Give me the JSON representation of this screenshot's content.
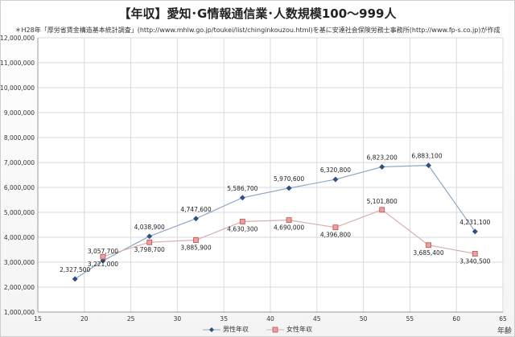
{
  "title": "【年収】愛知･G情報通信業･人数規模100～999人",
  "subtitle": "＊H28年「厚労省賃金構造基本統計調査」(http://www.mhlw.go.jp/toukei/list/chinginkouzou.html)を基に安達社会保険労務士事務所(http://www.fp-s.co.jp)が作成",
  "colors": {
    "male": "#4f6f9f",
    "female": "#c0504d",
    "grid": "#d9d9d9",
    "axis": "#999999"
  },
  "chart_data": {
    "type": "line",
    "title": "【年収】愛知･G情報通信業･人数規模100～999人",
    "xlabel": "年齢",
    "ylabel": "",
    "xlim": [
      15,
      65
    ],
    "ylim": [
      1000000,
      12000000
    ],
    "x_ticks": [
      15,
      20,
      25,
      30,
      35,
      40,
      45,
      50,
      55,
      60,
      65
    ],
    "y_ticks": [
      1000000,
      2000000,
      3000000,
      4000000,
      5000000,
      6000000,
      7000000,
      8000000,
      9000000,
      10000000,
      11000000,
      12000000
    ],
    "y_tick_labels": [
      "1,000,000",
      "2,000,000",
      "3,000,000",
      "4,000,000",
      "5,000,000",
      "6,000,000",
      "7,000,000",
      "8,000,000",
      "9,000,000",
      "10,000,000",
      "11,000,000",
      "12,000,000"
    ],
    "grid": true,
    "legend": "bottom",
    "series": [
      {
        "name": "男性年収",
        "marker": "diamond",
        "x": [
          19,
          22,
          27,
          32,
          37,
          42,
          47,
          52,
          57,
          62
        ],
        "values": [
          2327500,
          3057700,
          4038900,
          4747600,
          5586700,
          5970600,
          6320800,
          6823200,
          6883100,
          4231100
        ],
        "labels": [
          "2,327,500",
          "3,057,700",
          "4,038,900",
          "4,747,600",
          "5,586,700",
          "5,970,600",
          "6,320,800",
          "6,823,200",
          "6,883,100",
          "4,231,100"
        ]
      },
      {
        "name": "女性年収",
        "marker": "square",
        "x": [
          22,
          27,
          32,
          37,
          42,
          47,
          52,
          57,
          62
        ],
        "values": [
          3221000,
          3798700,
          3885900,
          4630300,
          4690000,
          4396800,
          5101800,
          3685400,
          3340500
        ],
        "labels": [
          "3,221,000",
          "3,798,700",
          "3,885,900",
          "4,630,300",
          "4,690,000",
          "4,396,800",
          "5,101,800",
          "3,685,400",
          "3,340,500"
        ]
      }
    ]
  }
}
